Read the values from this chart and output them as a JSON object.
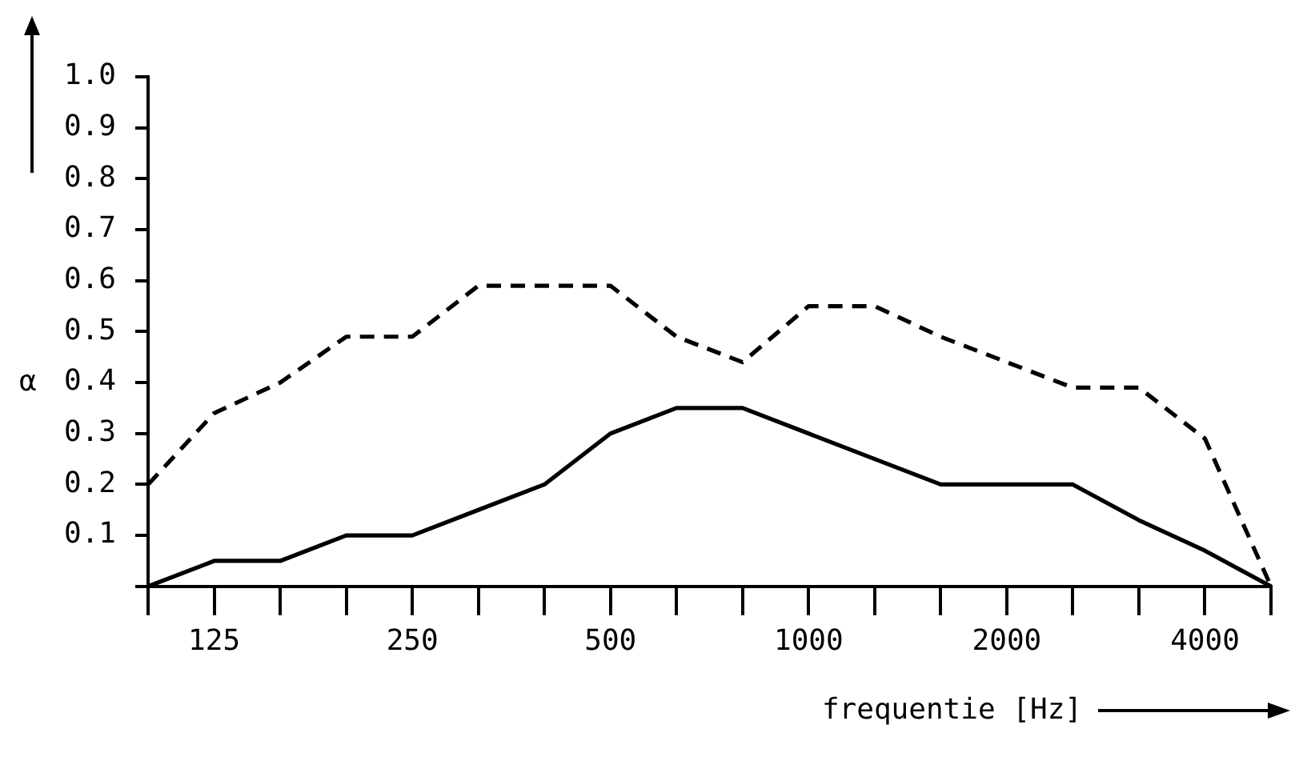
{
  "chart_data": {
    "type": "line",
    "xlabel": "frequentie [Hz]",
    "ylabel": "α",
    "categories": [
      null,
      "125",
      null,
      null,
      "250",
      null,
      null,
      "500",
      null,
      null,
      "1000",
      null,
      null,
      "2000",
      null,
      null,
      "4000",
      null
    ],
    "series": [
      {
        "color": "#000000",
        "line_style": "dashed",
        "values": [
          0.2,
          0.34,
          0.4,
          0.49,
          0.49,
          0.59,
          0.59,
          0.59,
          0.49,
          0.44,
          0.55,
          0.55,
          0.49,
          0.44,
          0.39,
          0.39,
          0.29,
          0
        ]
      },
      {
        "color": "#000000",
        "line_style": "solid",
        "values": [
          0,
          0.05,
          0.05,
          0.1,
          0.1,
          0.15,
          0.2,
          0.3,
          0.35,
          0.35,
          0.3,
          0.25,
          0.2,
          0.2,
          0.2,
          0.13,
          0.07,
          0
        ]
      }
    ],
    "ylim": [
      0,
      1.0
    ],
    "yticks": [
      {
        "value": 0,
        "label": null
      },
      {
        "value": 0.1,
        "label": "0.1"
      },
      {
        "value": 0.2,
        "label": "0.2"
      },
      {
        "value": 0.3,
        "label": "0.3"
      },
      {
        "value": 0.4,
        "label": "0.4"
      },
      {
        "value": 0.5,
        "label": "0.5"
      },
      {
        "value": 0.6,
        "label": "0.6"
      },
      {
        "value": 0.7,
        "label": "0.7"
      },
      {
        "value": 0.8,
        "label": "0.8"
      },
      {
        "value": 0.9,
        "label": "0.9"
      },
      {
        "value": 1.0,
        "label": "1.0"
      }
    ],
    "grid": false,
    "legend": false,
    "marker": "none"
  }
}
